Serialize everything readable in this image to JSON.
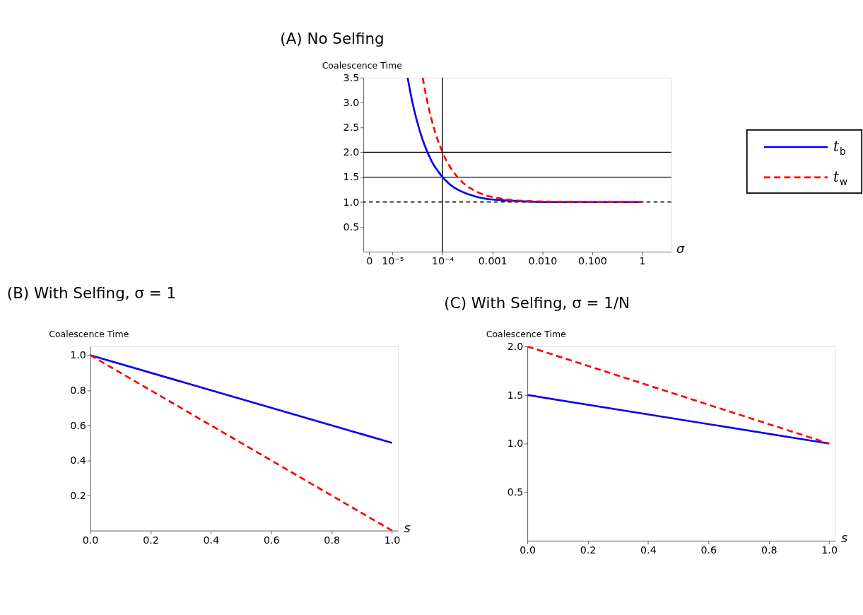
{
  "chart_data": [
    {
      "type": "line",
      "title": "(A) No Selfing",
      "xlabel": "σ",
      "ylabel": "Coalescence Time",
      "log": "x",
      "legend": "right",
      "grid": false,
      "xlim": [
        2.6e-06,
        3.8
      ],
      "ylim": [
        0,
        3.5
      ],
      "xticks": [
        {
          "value": 3.4e-06,
          "label": "0"
        },
        {
          "value": 1e-05,
          "label": "10⁻⁵"
        },
        {
          "value": 0.0001,
          "label": "10⁻⁴"
        },
        0.001,
        {
          "value": 0.01,
          "label": "0.010"
        },
        {
          "value": 0.1,
          "label": "0.100"
        },
        1
      ],
      "yticks": [
        0.5,
        {
          "value": 1,
          "label": "1.0"
        },
        1.5,
        {
          "value": 2,
          "label": "2.0"
        },
        2.5,
        {
          "value": 3,
          "label": "3.0"
        },
        3.5
      ],
      "series": [
        {
          "name": "t$_{b}$",
          "color": "#0000ff",
          "line_style": "solid",
          "x": [
            2e-05,
            2.5e-05,
            3e-05,
            4e-05,
            5e-05,
            6e-05,
            7e-05,
            8e-05,
            0.0001,
            0.00012,
            0.00015,
            0.0002,
            0.0003,
            0.0004,
            0.0005,
            0.0007,
            0.001,
            0.002,
            0.005,
            0.01,
            0.1,
            1
          ],
          "values": [
            3.5,
            3.0,
            2.67,
            2.25,
            2.0,
            1.83,
            1.71,
            1.63,
            1.5,
            1.42,
            1.33,
            1.25,
            1.17,
            1.13,
            1.1,
            1.07,
            1.05,
            1.03,
            1.01,
            1.0,
            1.0,
            1.0
          ]
        },
        {
          "name": "t$_{w}$",
          "color": "#ff0000",
          "line_style": "dashed",
          "x": [
            4e-05,
            5e-05,
            6e-05,
            7e-05,
            8e-05,
            0.0001,
            0.00012,
            0.00015,
            0.0002,
            0.0003,
            0.0004,
            0.0005,
            0.0007,
            0.001,
            0.002,
            0.003,
            0.005,
            0.01,
            0.1,
            1
          ],
          "values": [
            3.5,
            3.0,
            2.67,
            2.43,
            2.25,
            2.0,
            1.83,
            1.67,
            1.5,
            1.33,
            1.25,
            1.2,
            1.14,
            1.1,
            1.05,
            1.03,
            1.02,
            1.01,
            1.0,
            1.0
          ]
        }
      ],
      "ref_lines": [
        {
          "axis": "y",
          "value": 2,
          "color": "#000000",
          "line_style": "solid"
        },
        {
          "axis": "y",
          "value": 1.5,
          "color": "#000000",
          "line_style": "solid"
        },
        {
          "axis": "y",
          "value": 1,
          "color": "#000000",
          "line_style": "dashed"
        },
        {
          "axis": "x",
          "value": 0.0001,
          "color": "#000000",
          "line_style": "solid"
        }
      ]
    },
    {
      "type": "line",
      "title": "(B) With Selfing, σ = 1",
      "xlabel": "s",
      "ylabel": "Coalescence Time",
      "grid": false,
      "xlim": [
        0,
        1.02
      ],
      "ylim": [
        0,
        1.05
      ],
      "xticks": [
        {
          "value": 0,
          "label": "0.0"
        },
        0.2,
        0.4,
        0.6,
        0.8,
        {
          "value": 1,
          "label": "1.0"
        }
      ],
      "yticks": [
        0.2,
        0.4,
        0.6,
        0.8,
        {
          "value": 1,
          "label": "1.0"
        }
      ],
      "series": [
        {
          "color": "#0000ff",
          "line_style": "solid",
          "x": [
            0,
            1
          ],
          "values": [
            1.0,
            0.5
          ]
        },
        {
          "color": "#ff0000",
          "line_style": "dashed",
          "x": [
            0,
            1
          ],
          "values": [
            1.0,
            0.0
          ]
        }
      ]
    },
    {
      "type": "line",
      "title": "(C) With Selfing, σ = 1/N",
      "xlabel": "s",
      "ylabel": "Coalescence Time",
      "grid": false,
      "xlim": [
        0,
        1.02
      ],
      "ylim": [
        0,
        2.0
      ],
      "xticks": [
        {
          "value": 0,
          "label": "0.0"
        },
        0.2,
        0.4,
        0.6,
        0.8,
        {
          "value": 1,
          "label": "1.0"
        }
      ],
      "yticks": [
        0.5,
        {
          "value": 1,
          "label": "1.0"
        },
        1.5,
        {
          "value": 2,
          "label": "2.0"
        }
      ],
      "series": [
        {
          "color": "#0000ff",
          "line_style": "solid",
          "x": [
            0,
            1
          ],
          "values": [
            1.5,
            1.0
          ]
        },
        {
          "color": "#ff0000",
          "line_style": "dashed",
          "x": [
            0,
            1
          ],
          "values": [
            2.0,
            1.0
          ]
        }
      ]
    }
  ]
}
